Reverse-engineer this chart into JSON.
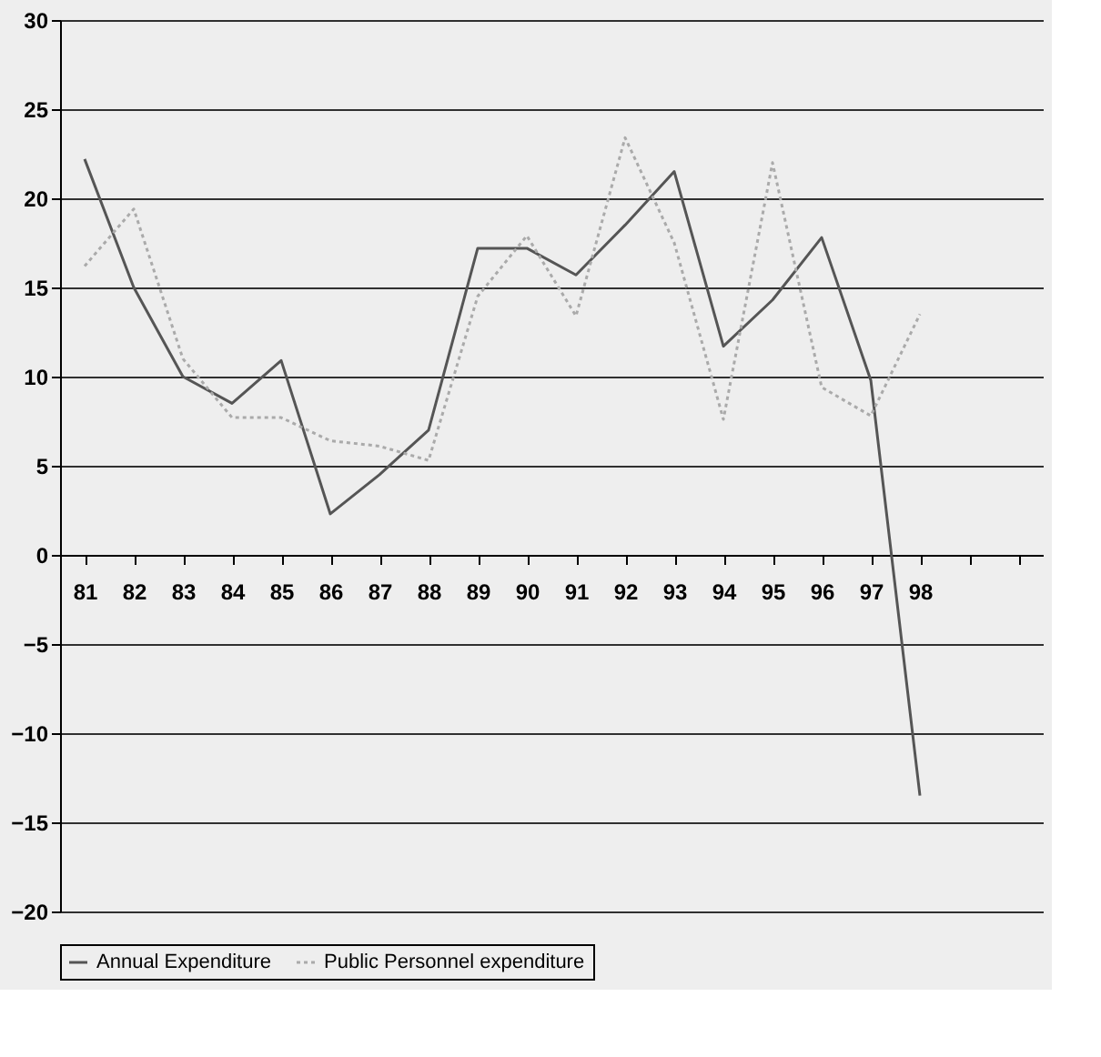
{
  "chart_data": {
    "type": "line",
    "categories": [
      "81",
      "82",
      "83",
      "84",
      "85",
      "86",
      "87",
      "88",
      "89",
      "90",
      "91",
      "92",
      "93",
      "94",
      "95",
      "96",
      "97",
      "98",
      null,
      null
    ],
    "series": [
      {
        "name": "Annual Expenditure",
        "color": "#555555",
        "line_style": "solid",
        "values": [
          22.2,
          15,
          10,
          8.5,
          10.9,
          2.3,
          4.5,
          7,
          17.2,
          17.2,
          15.7,
          18.5,
          21.5,
          11.7,
          14.3,
          17.8,
          9.8,
          -13.5,
          null,
          null
        ]
      },
      {
        "name": "Public Personnel expenditure",
        "color": "#aaaaaa",
        "line_style": "dotted",
        "values": [
          16.2,
          19.4,
          11,
          7.7,
          7.7,
          6.4,
          6.1,
          5.3,
          14.5,
          17.9,
          13.4,
          23.4,
          17.5,
          7.6,
          22,
          9.4,
          7.8,
          13.5,
          null,
          null
        ]
      }
    ],
    "ylim": [
      -20,
      30
    ],
    "yticks": [
      -20,
      -15,
      -10,
      -5,
      0,
      5,
      10,
      15,
      20,
      25,
      30
    ],
    "grid": "y",
    "legend": "bottom",
    "marker": "none"
  }
}
